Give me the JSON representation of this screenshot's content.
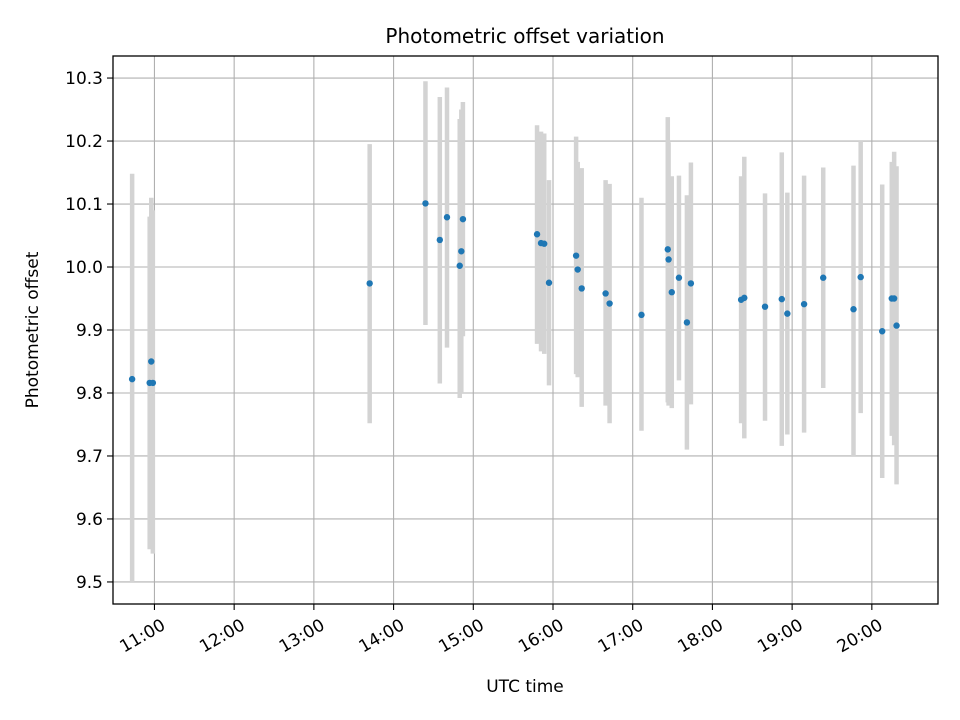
{
  "chart_data": {
    "type": "scatter",
    "title": "Photometric offset variation",
    "xlabel": "UTC time",
    "ylabel": "Photometric offset",
    "grid": true,
    "xlim": [
      10.48,
      20.83
    ],
    "ylim": [
      9.465,
      10.335
    ],
    "x_ticks": [
      {
        "value": 11,
        "label": "11:00"
      },
      {
        "value": 12,
        "label": "12:00"
      },
      {
        "value": 13,
        "label": "13:00"
      },
      {
        "value": 14,
        "label": "14:00"
      },
      {
        "value": 15,
        "label": "15:00"
      },
      {
        "value": 16,
        "label": "16:00"
      },
      {
        "value": 17,
        "label": "17:00"
      },
      {
        "value": 18,
        "label": "18:00"
      },
      {
        "value": 19,
        "label": "19:00"
      },
      {
        "value": 20,
        "label": "20:00"
      }
    ],
    "y_ticks": [
      {
        "value": 9.5,
        "label": "9.5"
      },
      {
        "value": 9.6,
        "label": "9.6"
      },
      {
        "value": 9.7,
        "label": "9.7"
      },
      {
        "value": 9.8,
        "label": "9.8"
      },
      {
        "value": 9.9,
        "label": "9.9"
      },
      {
        "value": 10.0,
        "label": "10.0"
      },
      {
        "value": 10.1,
        "label": "10.1"
      },
      {
        "value": 10.2,
        "label": "10.2"
      },
      {
        "value": 10.3,
        "label": "10.3"
      }
    ],
    "colors": {
      "point": "#1f77b4",
      "errorbar": "#d3d3d3",
      "grid": "#b0b0b0"
    },
    "series": [
      {
        "name": "Photometric offset",
        "points": [
          {
            "x": 10.72,
            "y": 9.822,
            "lo": 9.5,
            "hi": 10.148
          },
          {
            "x": 10.94,
            "y": 9.816,
            "lo": 9.552,
            "hi": 10.08
          },
          {
            "x": 10.96,
            "y": 9.85,
            "lo": 9.59,
            "hi": 10.11
          },
          {
            "x": 10.98,
            "y": 9.816,
            "lo": 9.545,
            "hi": 10.09
          },
          {
            "x": 13.7,
            "y": 9.974,
            "lo": 9.752,
            "hi": 10.195
          },
          {
            "x": 14.4,
            "y": 10.101,
            "lo": 9.908,
            "hi": 10.295
          },
          {
            "x": 14.58,
            "y": 10.043,
            "lo": 9.815,
            "hi": 10.27
          },
          {
            "x": 14.67,
            "y": 10.079,
            "lo": 9.872,
            "hi": 10.285
          },
          {
            "x": 14.83,
            "y": 10.002,
            "lo": 9.792,
            "hi": 10.235
          },
          {
            "x": 14.85,
            "y": 10.025,
            "lo": 9.8,
            "hi": 10.25
          },
          {
            "x": 14.87,
            "y": 10.076,
            "lo": 9.89,
            "hi": 10.262
          },
          {
            "x": 15.8,
            "y": 10.052,
            "lo": 9.878,
            "hi": 10.225
          },
          {
            "x": 15.85,
            "y": 10.038,
            "lo": 9.866,
            "hi": 10.215
          },
          {
            "x": 15.89,
            "y": 10.037,
            "lo": 9.862,
            "hi": 10.212
          },
          {
            "x": 15.95,
            "y": 9.975,
            "lo": 9.812,
            "hi": 10.138
          },
          {
            "x": 16.29,
            "y": 10.018,
            "lo": 9.83,
            "hi": 10.207
          },
          {
            "x": 16.31,
            "y": 9.996,
            "lo": 9.825,
            "hi": 10.167
          },
          {
            "x": 16.36,
            "y": 9.966,
            "lo": 9.778,
            "hi": 10.157
          },
          {
            "x": 16.66,
            "y": 9.958,
            "lo": 9.78,
            "hi": 10.138
          },
          {
            "x": 16.71,
            "y": 9.942,
            "lo": 9.752,
            "hi": 10.132
          },
          {
            "x": 17.11,
            "y": 9.924,
            "lo": 9.74,
            "hi": 10.11
          },
          {
            "x": 17.44,
            "y": 10.028,
            "lo": 9.785,
            "hi": 10.238
          },
          {
            "x": 17.45,
            "y": 10.012,
            "lo": 9.78,
            "hi": 10.198
          },
          {
            "x": 17.49,
            "y": 9.96,
            "lo": 9.776,
            "hi": 10.144
          },
          {
            "x": 17.58,
            "y": 9.983,
            "lo": 9.82,
            "hi": 10.145
          },
          {
            "x": 17.68,
            "y": 9.912,
            "lo": 9.71,
            "hi": 10.114
          },
          {
            "x": 17.73,
            "y": 9.974,
            "lo": 9.782,
            "hi": 10.166
          },
          {
            "x": 18.36,
            "y": 9.948,
            "lo": 9.752,
            "hi": 10.144
          },
          {
            "x": 18.4,
            "y": 9.951,
            "lo": 9.728,
            "hi": 10.175
          },
          {
            "x": 18.66,
            "y": 9.937,
            "lo": 9.756,
            "hi": 10.117
          },
          {
            "x": 18.87,
            "y": 9.949,
            "lo": 9.716,
            "hi": 10.182
          },
          {
            "x": 18.94,
            "y": 9.926,
            "lo": 9.734,
            "hi": 10.118
          },
          {
            "x": 19.15,
            "y": 9.941,
            "lo": 9.737,
            "hi": 10.145
          },
          {
            "x": 19.39,
            "y": 9.983,
            "lo": 9.808,
            "hi": 10.158
          },
          {
            "x": 19.77,
            "y": 9.933,
            "lo": 9.7,
            "hi": 10.161
          },
          {
            "x": 19.86,
            "y": 9.984,
            "lo": 9.768,
            "hi": 10.2
          },
          {
            "x": 20.13,
            "y": 9.898,
            "lo": 9.665,
            "hi": 10.131
          },
          {
            "x": 20.25,
            "y": 9.95,
            "lo": 9.732,
            "hi": 10.167
          },
          {
            "x": 20.28,
            "y": 9.95,
            "lo": 9.717,
            "hi": 10.183
          },
          {
            "x": 20.31,
            "y": 9.907,
            "lo": 9.655,
            "hi": 10.16
          }
        ]
      }
    ]
  }
}
